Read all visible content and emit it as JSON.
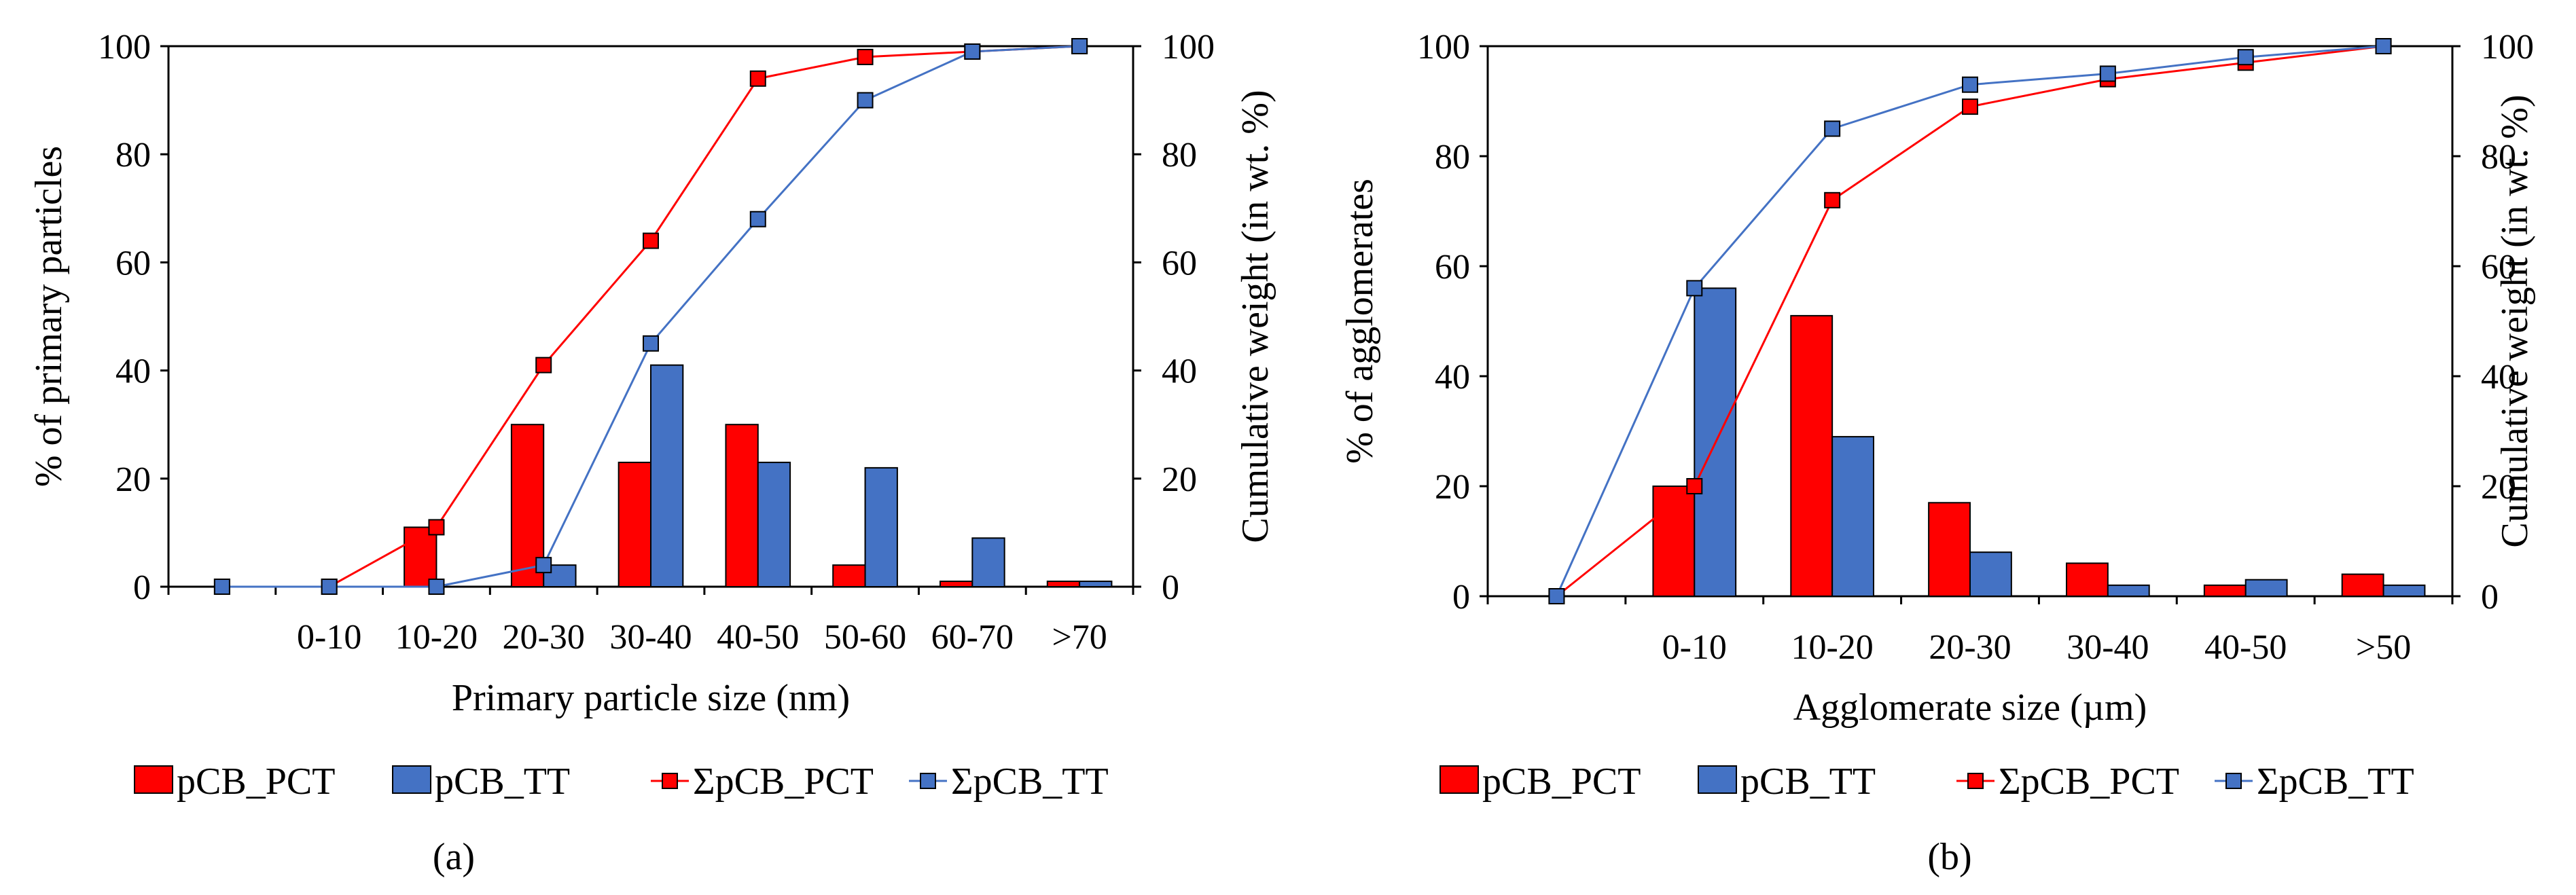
{
  "chart_data": [
    {
      "type": "bar+line",
      "panel_label": "(a)",
      "categories": [
        "",
        "0-10",
        "10-20",
        "20-30",
        "30-40",
        "40-50",
        "50-60",
        "60-70",
        ">70"
      ],
      "xlabel": "Primary particle size (nm)",
      "ylabel_left": "% of primary particles",
      "ylabel_right": "Cumulative weight (in wt. %)",
      "ylim_left": [
        0,
        100
      ],
      "ylim_right": [
        0,
        100
      ],
      "yticks": [
        "0",
        "20",
        "40",
        "60",
        "80",
        "100"
      ],
      "bars": [
        {
          "name": "pCB_PCT",
          "color": "#ff0000",
          "values": [
            0,
            0,
            11,
            30,
            23,
            30,
            4,
            1,
            1
          ]
        },
        {
          "name": "pCB_TT",
          "color": "#4472c4",
          "values": [
            0,
            0,
            0,
            4,
            41,
            23,
            22,
            9,
            1
          ]
        }
      ],
      "lines": [
        {
          "name": "ΣpCB_PCT",
          "color": "#ff0000",
          "values": [
            0,
            0,
            11,
            41,
            64,
            94,
            98,
            99,
            100
          ]
        },
        {
          "name": "ΣpCB_TT",
          "color": "#4472c4",
          "values": [
            0,
            0,
            0,
            4,
            45,
            68,
            90,
            99,
            100
          ]
        }
      ],
      "legend_position": "bottom"
    },
    {
      "type": "bar+line",
      "panel_label": "(b)",
      "categories": [
        "",
        "0-10",
        "10-20",
        "20-30",
        "30-40",
        "40-50",
        ">50"
      ],
      "xlabel": "Agglomerate size (µm)",
      "ylabel_left": "% of agglomerates",
      "ylabel_right": "Cumulative weight (in wt. %)",
      "ylim_left": [
        0,
        100
      ],
      "ylim_right": [
        0,
        100
      ],
      "yticks": [
        "0",
        "20",
        "40",
        "60",
        "80",
        "100"
      ],
      "bars": [
        {
          "name": "pCB_PCT",
          "color": "#ff0000",
          "values": [
            0,
            20,
            51,
            17,
            6,
            2,
            4
          ]
        },
        {
          "name": "pCB_TT",
          "color": "#4472c4",
          "values": [
            0,
            56,
            29,
            8,
            2,
            3,
            2
          ]
        }
      ],
      "lines": [
        {
          "name": "ΣpCB_PCT",
          "color": "#ff0000",
          "values": [
            0,
            20,
            72,
            89,
            94,
            97,
            100
          ]
        },
        {
          "name": "ΣpCB_TT",
          "color": "#4472c4",
          "values": [
            0,
            56,
            85,
            93,
            95,
            98,
            100
          ]
        }
      ],
      "legend_position": "bottom"
    }
  ]
}
